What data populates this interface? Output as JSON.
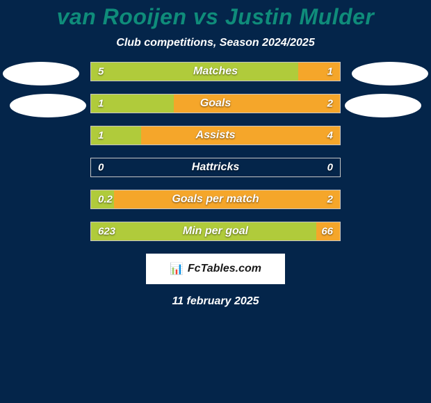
{
  "background_color": "#04254a",
  "text_color": "#ffffff",
  "ellipse_color": "#ffffff",
  "title": {
    "player_left": "van Rooijen",
    "vs": "vs",
    "player_right": "Justin Mulder",
    "fontsize": 32,
    "color": "#0f8c7a"
  },
  "subtitle": {
    "text": "Club competitions, Season 2024/2025",
    "fontsize": 16,
    "color": "#ffffff"
  },
  "rows": [
    {
      "label": "Matches",
      "left_val": "5",
      "right_val": "1",
      "left_pct": 83.3,
      "right_pct": 16.7
    },
    {
      "label": "Goals",
      "left_val": "1",
      "right_val": "2",
      "left_pct": 33.3,
      "right_pct": 66.7
    },
    {
      "label": "Assists",
      "left_val": "1",
      "right_val": "4",
      "left_pct": 20.0,
      "right_pct": 80.0
    },
    {
      "label": "Hattricks",
      "left_val": "0",
      "right_val": "0",
      "left_pct": 0.0,
      "right_pct": 0.0
    },
    {
      "label": "Goals per match",
      "left_val": "0.2",
      "right_val": "2",
      "left_pct": 9.1,
      "right_pct": 90.9
    },
    {
      "label": "Min per goal",
      "left_val": "623",
      "right_val": "66",
      "left_pct": 90.4,
      "right_pct": 9.6
    }
  ],
  "bar": {
    "left_fill": "#b0cb3b",
    "right_fill": "#f5a62a",
    "border_color": "#c6c6c6",
    "height": 28,
    "label_fontsize": 16,
    "value_fontsize": 15
  },
  "brand": {
    "bg": "#ffffff",
    "text_color": "#1a1a1a",
    "icon": "📊",
    "text": "FcTables.com"
  },
  "date": {
    "text": "11 february 2025",
    "color": "#ffffff",
    "fontsize": 16
  }
}
